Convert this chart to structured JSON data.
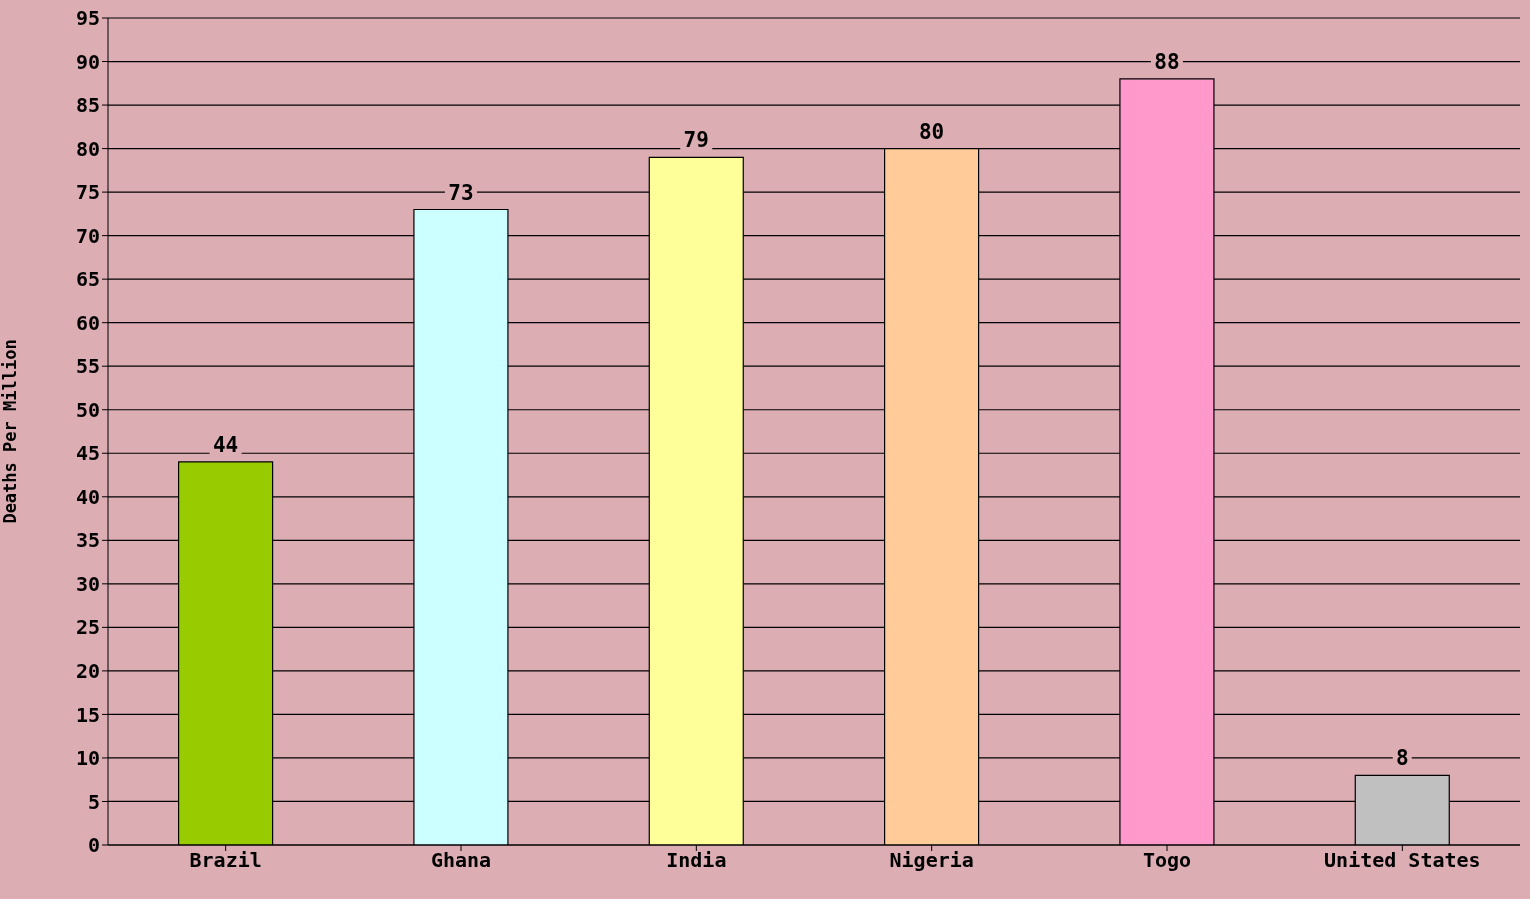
{
  "chart_data": {
    "type": "bar",
    "ylabel": "Deaths Per Million",
    "categories": [
      "Brazil",
      "Ghana",
      "India",
      "Nigeria",
      "Togo",
      "United States"
    ],
    "values": [
      44,
      73,
      79,
      80,
      88,
      8
    ],
    "colors": [
      "#99cc00",
      "#ccffff",
      "#ffff99",
      "#ffcc99",
      "#ff99cc",
      "#c0c0c0"
    ],
    "ylim": [
      0,
      95
    ],
    "yticks": [
      0,
      5,
      10,
      15,
      20,
      25,
      30,
      35,
      40,
      45,
      50,
      55,
      60,
      65,
      70,
      75,
      80,
      85,
      90,
      95
    ],
    "grid": "y",
    "data_labels": true
  }
}
